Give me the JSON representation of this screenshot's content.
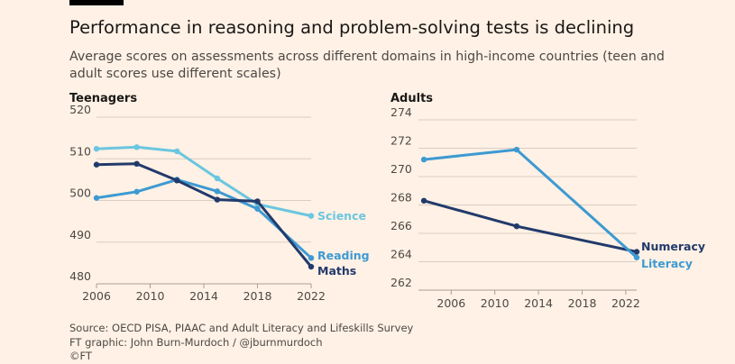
{
  "header": {
    "title": "Performance in reasoning and problem-solving tests is declining",
    "subtitle": "Average scores on assessments across different domains in high-income countries (teen and adult scores use different scales)"
  },
  "footer": {
    "source": "Source: OECD PISA, PIAAC and Adult Literacy and Lifeskills Survey",
    "credit": "FT graphic: John Burn-Murdoch / @jburnmurdoch",
    "copyright": "©FT"
  },
  "colors": {
    "background": "#fff1e5",
    "grid": "#d9cdc2",
    "science": "#6bc6df",
    "reading": "#3d9ad2",
    "maths": "#223a6b",
    "numeracy": "#223a6b",
    "literacy": "#3d9ad2",
    "axis_text": "#4d4845"
  },
  "chart_data": [
    {
      "type": "line",
      "title": "Teenagers",
      "xlim": [
        2006,
        2022
      ],
      "ylim": [
        480,
        520
      ],
      "xticks": [
        2006,
        2010,
        2014,
        2018,
        2022
      ],
      "yticks": [
        480,
        490,
        500,
        510,
        520
      ],
      "grid": true,
      "series": [
        {
          "name": "Science",
          "x": [
            2006,
            2009,
            2012,
            2015,
            2018,
            2022
          ],
          "values": [
            512.4,
            512.8,
            511.8,
            505.3,
            499.1,
            496.3
          ]
        },
        {
          "name": "Reading",
          "x": [
            2006,
            2009,
            2012,
            2015,
            2018,
            2022
          ],
          "values": [
            500.6,
            502.1,
            505.0,
            502.2,
            498.0,
            486.2
          ]
        },
        {
          "name": "Maths",
          "x": [
            2006,
            2009,
            2012,
            2015,
            2018,
            2022
          ],
          "values": [
            508.6,
            508.8,
            504.8,
            500.2,
            499.8,
            484.1
          ]
        }
      ]
    },
    {
      "type": "line",
      "title": "Adults",
      "xlim": [
        2003,
        2023
      ],
      "ylim": [
        262,
        274
      ],
      "xticks": [
        2006,
        2010,
        2014,
        2018,
        2022
      ],
      "yticks": [
        262,
        264,
        266,
        268,
        270,
        272,
        274
      ],
      "grid": true,
      "series": [
        {
          "name": "Numeracy",
          "x": [
            2003.5,
            2012,
            2023
          ],
          "values": [
            268.3,
            266.5,
            264.7
          ]
        },
        {
          "name": "Literacy",
          "x": [
            2003.5,
            2012,
            2023
          ],
          "values": [
            271.2,
            271.9,
            264.3
          ]
        }
      ]
    }
  ]
}
